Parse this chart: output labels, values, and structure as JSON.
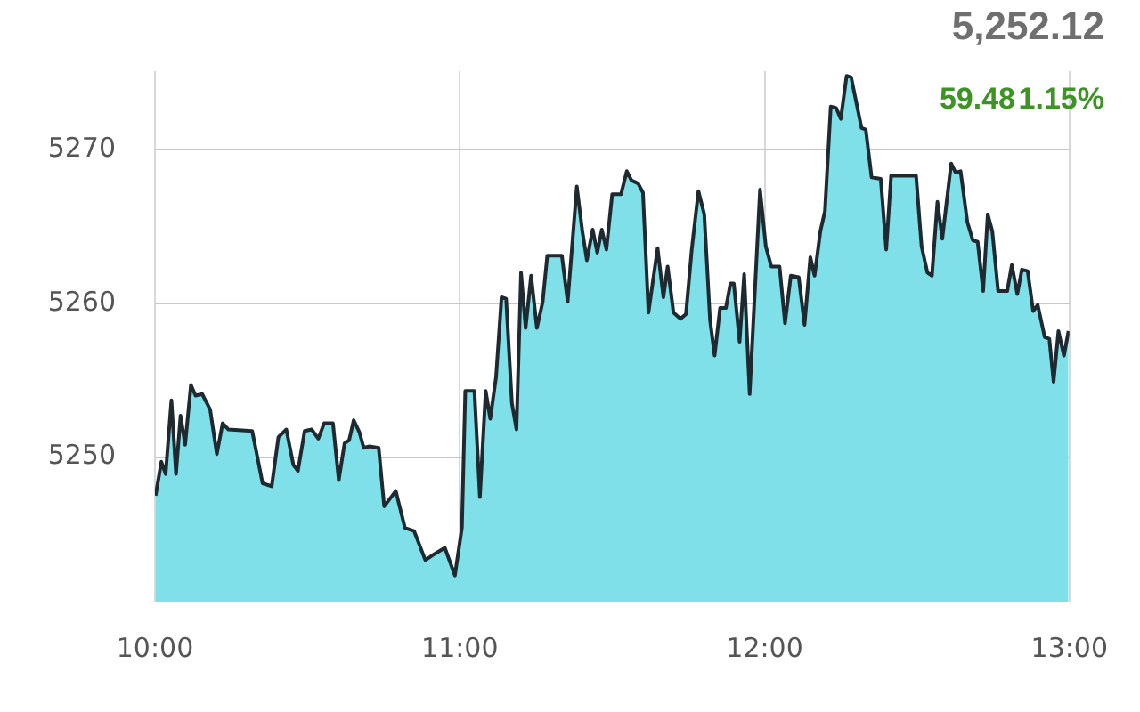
{
  "chart_data": {
    "type": "area",
    "annotations": [
      "5,252.12",
      "59.48",
      "1.15%"
    ],
    "x": [
      10.002,
      10.021,
      10.035,
      10.054,
      10.069,
      10.084,
      10.099,
      10.118,
      10.133,
      10.155,
      10.181,
      10.203,
      10.222,
      10.241,
      10.319,
      10.353,
      10.383,
      10.405,
      10.431,
      10.454,
      10.469,
      10.491,
      10.514,
      10.536,
      10.555,
      10.584,
      10.603,
      10.622,
      10.637,
      10.652,
      10.671,
      10.685,
      10.704,
      10.734,
      10.752,
      10.79,
      10.82,
      10.85,
      10.887,
      10.917,
      10.951,
      10.984,
      11.007,
      11.018,
      11.048,
      11.066,
      11.085,
      11.1,
      11.119,
      11.137,
      11.152,
      11.171,
      11.186,
      11.201,
      11.216,
      11.234,
      11.253,
      11.272,
      11.287,
      11.335,
      11.354,
      11.384,
      11.402,
      11.417,
      11.436,
      11.451,
      11.466,
      11.481,
      11.5,
      11.529,
      11.548,
      11.563,
      11.585,
      11.601,
      11.619,
      11.649,
      11.668,
      11.682,
      11.701,
      11.724,
      11.742,
      11.761,
      11.783,
      11.802,
      11.821,
      11.836,
      11.854,
      11.873,
      11.888,
      11.899,
      11.918,
      11.933,
      11.951,
      11.985,
      12.004,
      12.022,
      12.049,
      12.067,
      12.086,
      12.112,
      12.131,
      12.15,
      12.164,
      12.183,
      12.198,
      12.217,
      12.235,
      12.25,
      12.269,
      12.284,
      12.318,
      12.332,
      12.351,
      12.381,
      12.399,
      12.415,
      12.497,
      12.515,
      12.534,
      12.549,
      12.567,
      12.583,
      12.612,
      12.627,
      12.643,
      12.665,
      12.683,
      12.699,
      12.717,
      12.732,
      12.747,
      12.766,
      12.796,
      12.811,
      12.829,
      12.844,
      12.863,
      12.881,
      12.896,
      12.919,
      12.934,
      12.948,
      12.964,
      12.982,
      12.997
    ],
    "series": [
      {
        "color": "#80e0ea",
        "values": [
          5247.5,
          5249.7,
          5248.9,
          5253.7,
          5248.9,
          5252.7,
          5250.8,
          5254.7,
          5254.0,
          5254.1,
          5253.1,
          5250.2,
          5252.2,
          5251.8,
          5251.7,
          5248.3,
          5248.1,
          5251.3,
          5251.8,
          5249.5,
          5249.1,
          5251.7,
          5251.8,
          5251.2,
          5252.2,
          5252.2,
          5248.5,
          5250.9,
          5251.1,
          5252.4,
          5251.6,
          5250.6,
          5250.7,
          5250.6,
          5246.8,
          5247.8,
          5245.4,
          5245.2,
          5243.3,
          5243.7,
          5244.1,
          5242.3,
          5245.4,
          5254.3,
          5254.3,
          5247.4,
          5254.3,
          5252.5,
          5255.2,
          5260.4,
          5260.3,
          5253.5,
          5251.8,
          5262.0,
          5258.4,
          5261.8,
          5258.4,
          5260.1,
          5263.1,
          5263.1,
          5260.1,
          5267.6,
          5264.7,
          5262.8,
          5264.8,
          5263.3,
          5264.8,
          5263.5,
          5267.1,
          5267.1,
          5268.6,
          5268.0,
          5267.8,
          5267.2,
          5259.4,
          5263.6,
          5260.4,
          5262.4,
          5259.4,
          5259.0,
          5259.3,
          5263.5,
          5267.3,
          5265.8,
          5258.9,
          5256.6,
          5259.7,
          5259.7,
          5261.3,
          5261.3,
          5257.5,
          5261.9,
          5254.1,
          5267.4,
          5263.7,
          5262.4,
          5262.4,
          5258.7,
          5261.8,
          5261.7,
          5258.6,
          5263.0,
          5261.8,
          5264.7,
          5266.0,
          5272.8,
          5272.7,
          5272.0,
          5274.8,
          5274.7,
          5271.4,
          5271.3,
          5268.2,
          5268.1,
          5263.5,
          5268.3,
          5268.3,
          5263.7,
          5262.0,
          5261.8,
          5266.6,
          5264.2,
          5269.1,
          5268.5,
          5268.6,
          5265.3,
          5264.1,
          5264.0,
          5260.8,
          5265.8,
          5264.7,
          5260.8,
          5260.8,
          5262.5,
          5260.6,
          5262.2,
          5262.1,
          5259.5,
          5259.9,
          5257.8,
          5257.7,
          5254.9,
          5258.2,
          5256.6,
          5258.2
        ]
      }
    ],
    "xlim": [
      10,
      13
    ],
    "xticks": [
      {
        "value": 10,
        "label": "10:00"
      },
      {
        "value": 11,
        "label": "11:00"
      },
      {
        "value": 12,
        "label": "12:00"
      },
      {
        "value": 13,
        "label": "13:00"
      }
    ],
    "ylim": [
      5240.6,
      5275.1
    ],
    "yticks": [
      5250,
      5260,
      5270
    ],
    "grid": true,
    "legend": false,
    "marker": "none",
    "line_style": "solid"
  }
}
